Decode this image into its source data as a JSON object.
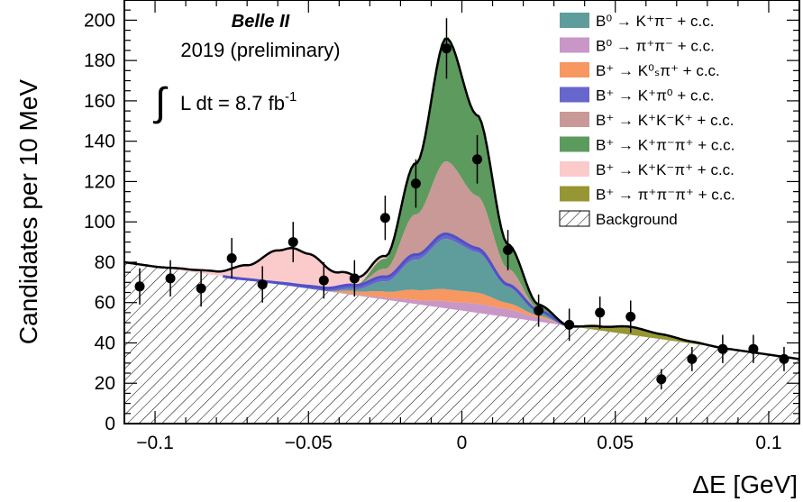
{
  "chart_data": {
    "type": "area",
    "title": "",
    "xlabel": "ΔE [GeV]",
    "ylabel": "Candidates per 10 MeV",
    "xlim": [
      -0.11,
      0.11
    ],
    "ylim": [
      0,
      210
    ],
    "xticks": [
      -0.1,
      -0.05,
      0,
      0.05,
      0.1
    ],
    "xtick_labels": [
      "−0.1",
      "−0.05",
      "0",
      "0.05",
      "0.1"
    ],
    "yticks": [
      0,
      20,
      40,
      60,
      80,
      100,
      120,
      140,
      160,
      180,
      200
    ],
    "ytick_labels": [
      "0",
      "20",
      "40",
      "60",
      "80",
      "100",
      "120",
      "140",
      "160",
      "180",
      "200"
    ],
    "annotations": {
      "experiment": "Belle II",
      "year": "2019 (preliminary)",
      "luminosity_integral": "∫",
      "luminosity_text": "L dt = 8.7 fb",
      "luminosity_exp": "-1"
    },
    "data_points": {
      "x": [
        -0.105,
        -0.095,
        -0.085,
        -0.075,
        -0.065,
        -0.055,
        -0.045,
        -0.035,
        -0.025,
        -0.015,
        -0.005,
        0.005,
        0.015,
        0.025,
        0.035,
        0.045,
        0.055,
        0.065,
        0.075,
        0.085,
        0.095,
        0.105
      ],
      "y": [
        68,
        72,
        67,
        82,
        69,
        90,
        71,
        72,
        102,
        119,
        186,
        131,
        86,
        56,
        49,
        55,
        53,
        22,
        32,
        37,
        37,
        32
      ],
      "err": [
        9,
        9,
        9,
        10,
        9,
        10,
        9,
        9,
        11,
        12,
        15,
        12,
        10,
        8,
        8,
        8,
        8,
        5,
        6,
        7,
        7,
        6
      ]
    },
    "background": {
      "x": [
        -0.11,
        0.11
      ],
      "y": [
        80,
        32
      ]
    },
    "legend_position": "top-right",
    "legend": [
      {
        "name": "B⁰ → K⁺π⁻ + c.c.",
        "color": "#5e9d9b"
      },
      {
        "name": "B⁰ → π⁺π⁻ + c.c.",
        "color": "#c897c8"
      },
      {
        "name": "B⁺ → K⁰ₛπ⁺ + c.c.",
        "color": "#f79762"
      },
      {
        "name": "B⁺ → K⁺π⁰ + c.c.",
        "color": "#6666cc"
      },
      {
        "name": "B⁺ → K⁺K⁻K⁺ + c.c.",
        "color": "#c89996"
      },
      {
        "name": "B⁺ → K⁺π⁻π⁺ + c.c.",
        "color": "#5d9a5d"
      },
      {
        "name": "B⁺ → K⁺K⁻π⁺ + c.c.",
        "color": "#fbcaca"
      },
      {
        "name": "B⁺ → π⁺π⁻π⁺ + c.c.",
        "color": "#969634"
      },
      {
        "name": "Background",
        "color": "hatched"
      }
    ],
    "components": [
      {
        "name": "B⁺ → π⁺π⁻π⁺ + c.c.",
        "color": "#969634",
        "x": [
          0.035,
          0.045,
          0.055,
          0.065,
          0.075,
          0.085
        ],
        "y": [
          0,
          2,
          4,
          2.5,
          1,
          0
        ]
      },
      {
        "name": "B⁰ → π⁺π⁻ + c.c.",
        "color": "#c897c8",
        "x": [
          -0.045,
          -0.035,
          -0.025,
          -0.015,
          -0.005,
          0.005,
          0.015,
          0.025,
          0.035
        ],
        "y": [
          0,
          0.5,
          1,
          2,
          3.5,
          4.5,
          4,
          2,
          0
        ]
      },
      {
        "name": "B⁺ → K⁰ₛπ⁺ + c.c.",
        "color": "#f79762",
        "x": [
          -0.045,
          -0.035,
          -0.025,
          -0.015,
          -0.005,
          0.005,
          0.015,
          0.025,
          0.035
        ],
        "y": [
          0,
          1.5,
          3,
          5,
          6,
          5.5,
          3,
          1,
          0
        ]
      },
      {
        "name": "B⁰ → K⁺π⁻ + c.c.",
        "color": "#5e9d9b",
        "x": [
          -0.045,
          -0.035,
          -0.025,
          -0.015,
          -0.005,
          0.005,
          0.015,
          0.025,
          0.035
        ],
        "y": [
          0,
          1,
          5,
          15,
          25,
          20,
          8,
          2,
          0
        ]
      },
      {
        "name": "B⁺ → K⁺π⁰ + c.c.",
        "color": "#6666cc",
        "x": [
          -0.075,
          -0.065,
          -0.055,
          -0.045,
          -0.035,
          -0.025,
          -0.015,
          -0.005,
          0.005,
          0.015,
          0.025,
          0.035
        ],
        "y": [
          0,
          0.5,
          1,
          1.5,
          2,
          2.3,
          2.5,
          2.5,
          2,
          1.2,
          0.5,
          0
        ]
      },
      {
        "name": "B⁺ → K⁺K⁻K⁺ + c.c.",
        "color": "#c89996",
        "x": [
          -0.035,
          -0.025,
          -0.015,
          -0.005,
          0.005,
          0.015,
          0.025,
          0.035
        ],
        "y": [
          0,
          4,
          20,
          36,
          26,
          8,
          1,
          0
        ]
      },
      {
        "name": "B⁺ → K⁺π⁻π⁺ + c.c.",
        "color": "#5d9a5d",
        "x": [
          -0.035,
          -0.025,
          -0.015,
          -0.005,
          0.005,
          0.015,
          0.025,
          0.035
        ],
        "y": [
          0,
          5,
          25,
          61,
          40,
          12,
          2,
          0
        ]
      },
      {
        "name": "B⁺ → K⁺K⁻π⁺ + c.c.",
        "color": "#fbcaca",
        "x": [
          -0.1,
          -0.09,
          -0.08,
          -0.07,
          -0.06,
          -0.055,
          -0.05,
          -0.04,
          -0.03,
          -0.02,
          -0.01
        ],
        "y": [
          0,
          1,
          2,
          7,
          16,
          18,
          16,
          7,
          2,
          0.5,
          0
        ]
      }
    ]
  }
}
